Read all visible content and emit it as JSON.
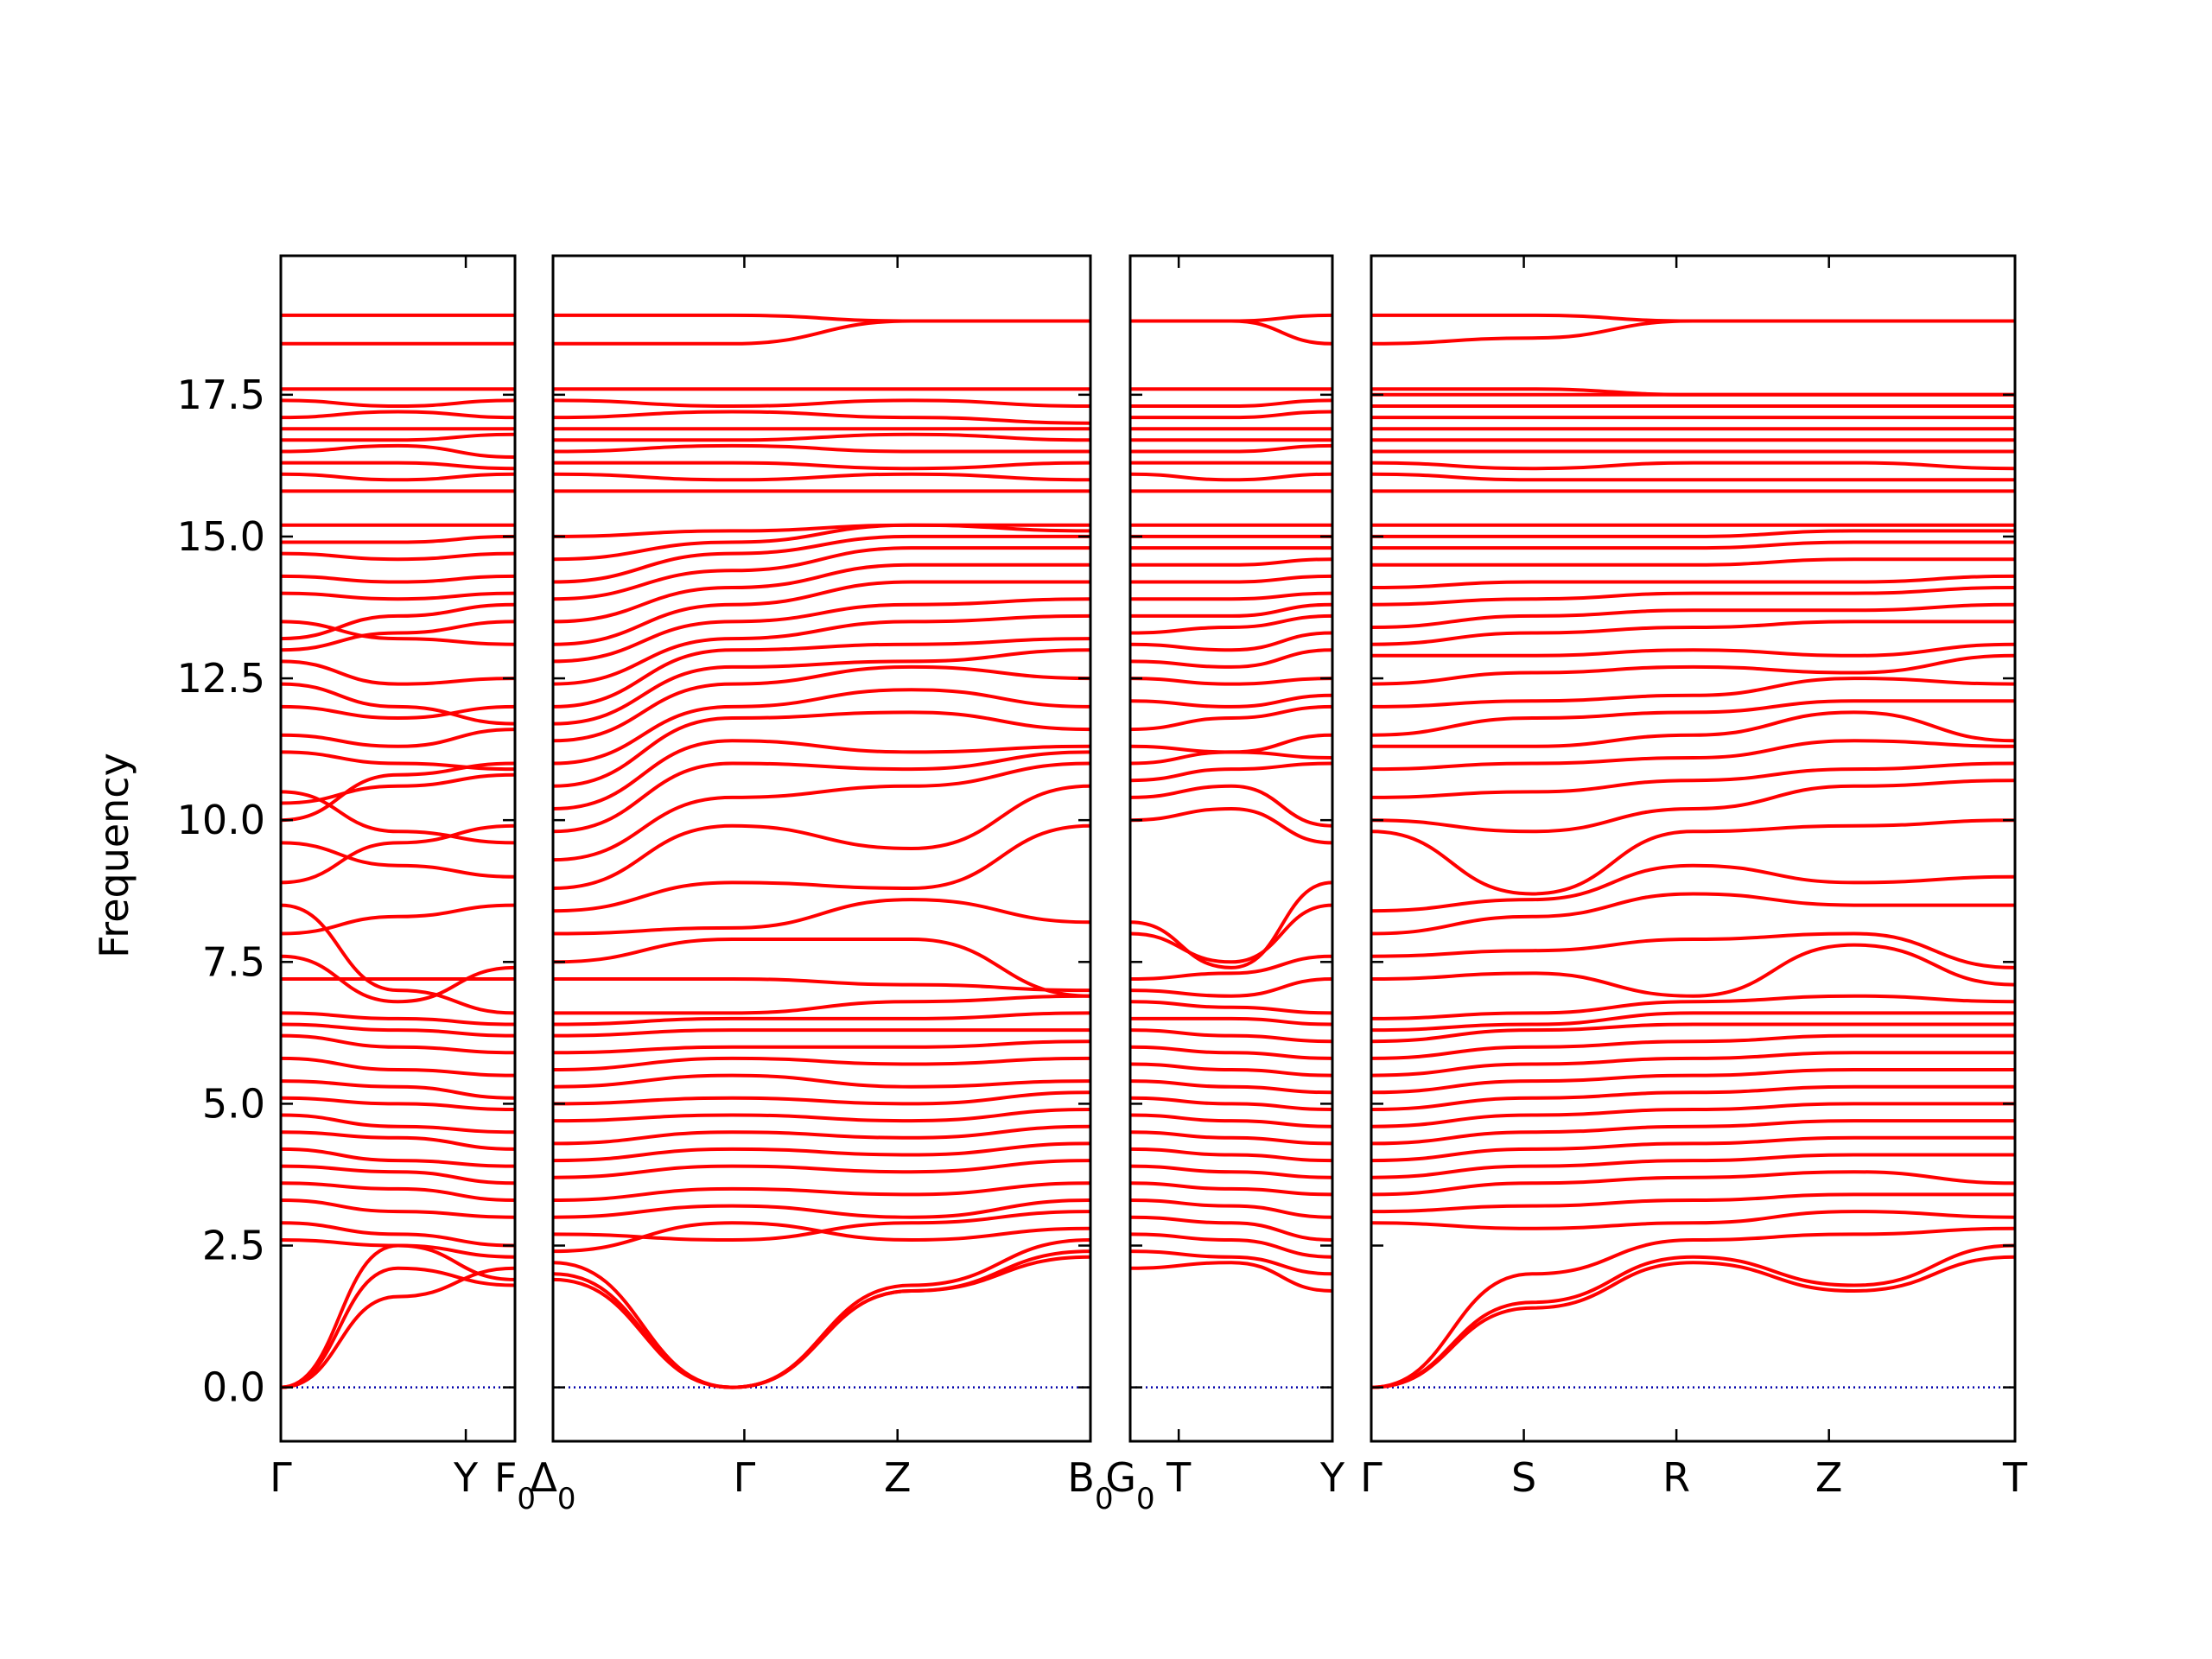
{
  "chart_data": {
    "type": "line",
    "ylabel": "Frequency",
    "ylim": [
      -0.95,
      19.95
    ],
    "yticks": [
      "0.0",
      "2.5",
      "5.0",
      "7.5",
      "10.0",
      "12.5",
      "15.0",
      "17.5"
    ],
    "ytick_values": [
      0,
      2.5,
      5,
      7.5,
      10,
      12.5,
      15,
      17.5
    ],
    "line_color": "#ff0000",
    "zero_line_color": "#0000aa",
    "grid": false,
    "legend": "none",
    "panels": [
      {
        "xlabels": [
          "Γ",
          "Y",
          "F0"
        ],
        "xticks": [
          0,
          0.79,
          1
        ],
        "bands": [
          [
            0,
            2.5,
            1.9
          ],
          [
            0,
            2.1,
            1.8
          ],
          [
            0,
            1.6,
            2.1
          ],
          [
            2.6,
            2.5,
            2.3
          ],
          [
            2.9,
            2.7,
            2.5
          ],
          [
            3.3,
            3.1,
            3.0
          ],
          [
            3.6,
            3.5,
            3.3
          ],
          [
            3.9,
            3.8,
            3.6
          ],
          [
            4.2,
            4.0,
            3.9
          ],
          [
            4.5,
            4.4,
            4.2
          ],
          [
            4.8,
            4.6,
            4.5
          ],
          [
            5.1,
            5.0,
            4.9
          ],
          [
            5.4,
            5.3,
            5.1
          ],
          [
            5.8,
            5.6,
            5.5
          ],
          [
            6.2,
            6.0,
            5.9
          ],
          [
            6.4,
            6.3,
            6.2
          ],
          [
            6.6,
            6.5,
            6.4
          ],
          [
            7.2,
            7.2,
            7.2
          ],
          [
            7.6,
            6.8,
            7.4
          ],
          [
            8.0,
            8.3,
            8.5
          ],
          [
            8.5,
            7.0,
            6.6
          ],
          [
            8.9,
            9.6,
            9.9
          ],
          [
            9.6,
            9.2,
            9.0
          ],
          [
            10.0,
            10.8,
            11.0
          ],
          [
            10.3,
            10.6,
            10.8
          ],
          [
            10.5,
            9.8,
            9.6
          ],
          [
            11.2,
            11.0,
            10.9
          ],
          [
            11.5,
            11.3,
            11.6
          ],
          [
            12.0,
            11.8,
            12.0
          ],
          [
            12.4,
            12.0,
            11.7
          ],
          [
            12.8,
            12.4,
            12.5
          ],
          [
            13.0,
            13.3,
            13.5
          ],
          [
            13.2,
            13.6,
            13.8
          ],
          [
            13.5,
            13.2,
            13.1
          ],
          [
            14.0,
            13.9,
            14.0
          ],
          [
            14.3,
            14.2,
            14.3
          ],
          [
            14.7,
            14.6,
            14.7
          ],
          [
            14.9,
            14.9,
            15.0
          ],
          [
            15.2,
            15.2,
            15.2
          ],
          [
            15.8,
            15.8,
            15.8
          ],
          [
            16.1,
            16.0,
            16.1
          ],
          [
            16.3,
            16.3,
            16.2
          ],
          [
            16.5,
            16.6,
            16.4
          ],
          [
            16.7,
            16.7,
            16.8
          ],
          [
            16.9,
            16.9,
            16.9
          ],
          [
            17.1,
            17.2,
            17.1
          ],
          [
            17.4,
            17.3,
            17.4
          ],
          [
            17.6,
            17.6,
            17.6
          ],
          [
            18.4,
            18.4,
            18.4
          ],
          [
            18.9,
            18.9,
            18.9
          ]
        ]
      },
      {
        "xlabels": [
          "Δ0",
          "Γ",
          "Z",
          "B0"
        ],
        "xticks": [
          0,
          0.356,
          0.641,
          1
        ],
        "bands": [
          [
            1.9,
            0,
            1.7,
            2.4
          ],
          [
            2.0,
            0,
            1.8,
            2.6
          ],
          [
            2.2,
            0,
            1.7,
            2.3
          ],
          [
            2.4,
            2.9,
            2.6,
            2.8
          ],
          [
            2.7,
            2.6,
            2.9,
            3.1
          ],
          [
            3.0,
            3.2,
            3.0,
            3.3
          ],
          [
            3.3,
            3.5,
            3.4,
            3.6
          ],
          [
            3.7,
            3.9,
            3.8,
            4.0
          ],
          [
            4.0,
            4.2,
            4.1,
            4.3
          ],
          [
            4.3,
            4.5,
            4.4,
            4.6
          ],
          [
            4.7,
            4.8,
            4.7,
            4.9
          ],
          [
            5.0,
            5.1,
            5.0,
            5.2
          ],
          [
            5.3,
            5.5,
            5.3,
            5.4
          ],
          [
            5.6,
            5.8,
            5.7,
            5.8
          ],
          [
            5.9,
            6.0,
            6.0,
            6.1
          ],
          [
            6.2,
            6.3,
            6.3,
            6.3
          ],
          [
            6.4,
            6.5,
            6.5,
            6.6
          ],
          [
            6.6,
            6.6,
            6.8,
            6.9
          ],
          [
            7.2,
            7.2,
            7.1,
            7.0
          ],
          [
            7.5,
            7.9,
            7.9,
            6.9
          ],
          [
            8.0,
            8.1,
            8.6,
            8.2
          ],
          [
            8.4,
            8.9,
            8.8,
            9.9
          ],
          [
            8.8,
            9.9,
            9.5,
            10.6
          ],
          [
            9.3,
            10.4,
            10.6,
            11.0
          ],
          [
            9.8,
            11.0,
            10.9,
            11.2
          ],
          [
            10.2,
            11.4,
            11.2,
            11.3
          ],
          [
            10.6,
            11.8,
            11.9,
            11.6
          ],
          [
            11.0,
            12.0,
            12.3,
            12.0
          ],
          [
            11.4,
            12.4,
            12.7,
            12.5
          ],
          [
            11.7,
            12.7,
            12.8,
            13.0
          ],
          [
            12.0,
            13.0,
            13.1,
            13.2
          ],
          [
            12.4,
            13.2,
            13.5,
            13.6
          ],
          [
            12.8,
            13.5,
            13.8,
            13.9
          ],
          [
            13.1,
            13.8,
            14.2,
            14.2
          ],
          [
            13.5,
            14.1,
            14.5,
            14.5
          ],
          [
            13.9,
            14.4,
            14.8,
            14.8
          ],
          [
            14.2,
            14.7,
            15.0,
            15.0
          ],
          [
            14.6,
            14.9,
            15.2,
            15.1
          ],
          [
            15.0,
            15.1,
            15.2,
            15.2
          ],
          [
            15.8,
            15.8,
            15.8,
            15.8
          ],
          [
            16.1,
            16.0,
            16.1,
            16.0
          ],
          [
            16.3,
            16.3,
            16.2,
            16.3
          ],
          [
            16.5,
            16.6,
            16.5,
            16.5
          ],
          [
            16.7,
            16.7,
            16.8,
            16.7
          ],
          [
            16.9,
            16.9,
            16.9,
            16.9
          ],
          [
            17.1,
            17.2,
            17.1,
            17.0
          ],
          [
            17.4,
            17.3,
            17.4,
            17.3
          ],
          [
            17.6,
            17.6,
            17.6,
            17.6
          ],
          [
            18.4,
            18.4,
            18.8,
            18.8
          ],
          [
            18.9,
            18.9,
            18.8,
            18.8
          ]
        ]
      },
      {
        "xlabels": [
          "G0",
          "T",
          "Y"
        ],
        "xticks": [
          0,
          0.24,
          1
        ],
        "bands": [
          [
            2.1,
            2.2,
            1.7
          ],
          [
            2.4,
            2.3,
            2.0
          ],
          [
            2.7,
            2.6,
            2.3
          ],
          [
            3.0,
            2.9,
            2.6
          ],
          [
            3.3,
            3.2,
            3.0
          ],
          [
            3.6,
            3.5,
            3.4
          ],
          [
            3.9,
            3.8,
            3.7
          ],
          [
            4.2,
            4.1,
            4.0
          ],
          [
            4.5,
            4.4,
            4.3
          ],
          [
            4.8,
            4.7,
            4.6
          ],
          [
            5.1,
            5.0,
            4.9
          ],
          [
            5.4,
            5.3,
            5.2
          ],
          [
            5.7,
            5.6,
            5.5
          ],
          [
            6.0,
            5.9,
            5.8
          ],
          [
            6.3,
            6.2,
            6.1
          ],
          [
            6.5,
            6.5,
            6.4
          ],
          [
            6.8,
            6.7,
            6.6
          ],
          [
            7.0,
            6.9,
            7.2
          ],
          [
            7.2,
            7.3,
            7.6
          ],
          [
            8.2,
            7.4,
            8.9
          ],
          [
            8.0,
            7.5,
            8.5
          ],
          [
            10.0,
            10.2,
            9.6
          ],
          [
            10.4,
            10.6,
            9.9
          ],
          [
            10.7,
            10.9,
            11.0
          ],
          [
            11.0,
            11.2,
            11.1
          ],
          [
            11.3,
            11.2,
            11.5
          ],
          [
            11.6,
            11.8,
            12.0
          ],
          [
            12.1,
            12.0,
            12.2
          ],
          [
            12.5,
            12.4,
            12.5
          ],
          [
            12.8,
            12.7,
            13.0
          ],
          [
            13.1,
            13.0,
            13.3
          ],
          [
            13.3,
            13.4,
            13.6
          ],
          [
            13.6,
            13.6,
            13.8
          ],
          [
            13.9,
            13.9,
            14.0
          ],
          [
            14.2,
            14.2,
            14.3
          ],
          [
            14.5,
            14.5,
            14.6
          ],
          [
            14.8,
            14.8,
            14.8
          ],
          [
            15.0,
            15.0,
            15.0
          ],
          [
            15.2,
            15.2,
            15.2
          ],
          [
            15.8,
            15.8,
            15.8
          ],
          [
            16.1,
            16.0,
            16.1
          ],
          [
            16.3,
            16.3,
            16.3
          ],
          [
            16.5,
            16.5,
            16.6
          ],
          [
            16.7,
            16.7,
            16.7
          ],
          [
            16.9,
            16.9,
            16.9
          ],
          [
            17.1,
            17.1,
            17.2
          ],
          [
            17.3,
            17.3,
            17.4
          ],
          [
            17.6,
            17.6,
            17.6
          ],
          [
            18.8,
            18.8,
            18.4
          ],
          [
            18.8,
            18.8,
            18.9
          ]
        ]
      },
      {
        "xlabels": [
          "Γ",
          "S",
          "R",
          "Z",
          "T"
        ],
        "xticks": [
          0,
          0.237,
          0.474,
          0.711,
          1
        ],
        "bands": [
          [
            0,
            1.4,
            2.2,
            1.7,
            2.3
          ],
          [
            0,
            1.5,
            2.3,
            1.8,
            2.5
          ],
          [
            0,
            2.0,
            2.6,
            2.7,
            2.8
          ],
          [
            2.9,
            2.8,
            2.9,
            3.1,
            3.0
          ],
          [
            3.1,
            3.2,
            3.3,
            3.4,
            3.4
          ],
          [
            3.4,
            3.6,
            3.7,
            3.8,
            3.6
          ],
          [
            3.7,
            3.9,
            4.0,
            4.1,
            4.1
          ],
          [
            4.0,
            4.2,
            4.3,
            4.4,
            4.4
          ],
          [
            4.3,
            4.5,
            4.6,
            4.7,
            4.7
          ],
          [
            4.6,
            4.8,
            4.9,
            5.0,
            5.0
          ],
          [
            4.9,
            5.1,
            5.2,
            5.3,
            5.3
          ],
          [
            5.2,
            5.4,
            5.5,
            5.6,
            5.6
          ],
          [
            5.5,
            5.7,
            5.8,
            5.9,
            5.9
          ],
          [
            5.8,
            6.0,
            6.1,
            6.2,
            6.2
          ],
          [
            6.1,
            6.3,
            6.4,
            6.4,
            6.4
          ],
          [
            6.3,
            6.4,
            6.6,
            6.6,
            6.6
          ],
          [
            6.5,
            6.6,
            6.8,
            6.9,
            6.8
          ],
          [
            7.2,
            7.3,
            6.9,
            7.8,
            7.1
          ],
          [
            7.6,
            7.7,
            7.9,
            8.0,
            7.4
          ],
          [
            8.0,
            8.3,
            8.7,
            8.5,
            8.5
          ],
          [
            8.4,
            8.6,
            9.2,
            8.9,
            9.0
          ],
          [
            9.8,
            8.7,
            9.8,
            9.9,
            10.0
          ],
          [
            10.0,
            9.8,
            10.2,
            10.6,
            10.7
          ],
          [
            10.4,
            10.5,
            10.7,
            10.9,
            11.0
          ],
          [
            10.9,
            11.0,
            11.1,
            11.4,
            11.3
          ],
          [
            11.3,
            11.3,
            11.5,
            11.9,
            11.4
          ],
          [
            11.5,
            11.8,
            11.9,
            12.1,
            12.1
          ],
          [
            12.0,
            12.1,
            12.2,
            12.5,
            12.4
          ],
          [
            12.4,
            12.6,
            12.7,
            12.6,
            12.9
          ],
          [
            12.9,
            12.9,
            13.0,
            12.9,
            13.1
          ],
          [
            13.1,
            13.3,
            13.4,
            13.5,
            13.5
          ],
          [
            13.4,
            13.6,
            13.7,
            13.7,
            13.8
          ],
          [
            13.8,
            13.9,
            14.0,
            14.0,
            14.1
          ],
          [
            14.1,
            14.2,
            14.2,
            14.2,
            14.3
          ],
          [
            14.5,
            14.5,
            14.5,
            14.6,
            14.6
          ],
          [
            14.8,
            14.8,
            14.8,
            14.9,
            14.9
          ],
          [
            15.0,
            15.0,
            15.0,
            15.1,
            15.1
          ],
          [
            15.2,
            15.2,
            15.2,
            15.2,
            15.2
          ],
          [
            15.8,
            15.8,
            15.8,
            15.8,
            15.8
          ],
          [
            16.1,
            16.0,
            16.0,
            16.0,
            16.0
          ],
          [
            16.3,
            16.2,
            16.3,
            16.3,
            16.2
          ],
          [
            16.5,
            16.5,
            16.5,
            16.5,
            16.5
          ],
          [
            16.7,
            16.7,
            16.7,
            16.7,
            16.7
          ],
          [
            16.9,
            16.9,
            16.9,
            16.9,
            16.9
          ],
          [
            17.1,
            17.1,
            17.1,
            17.1,
            17.1
          ],
          [
            17.3,
            17.3,
            17.3,
            17.3,
            17.3
          ],
          [
            17.5,
            17.5,
            17.5,
            17.5,
            17.5
          ],
          [
            17.6,
            17.6,
            17.5,
            17.5,
            17.5
          ],
          [
            18.4,
            18.5,
            18.8,
            18.8,
            18.8
          ],
          [
            18.9,
            18.9,
            18.8,
            18.8,
            18.8
          ]
        ]
      }
    ]
  }
}
